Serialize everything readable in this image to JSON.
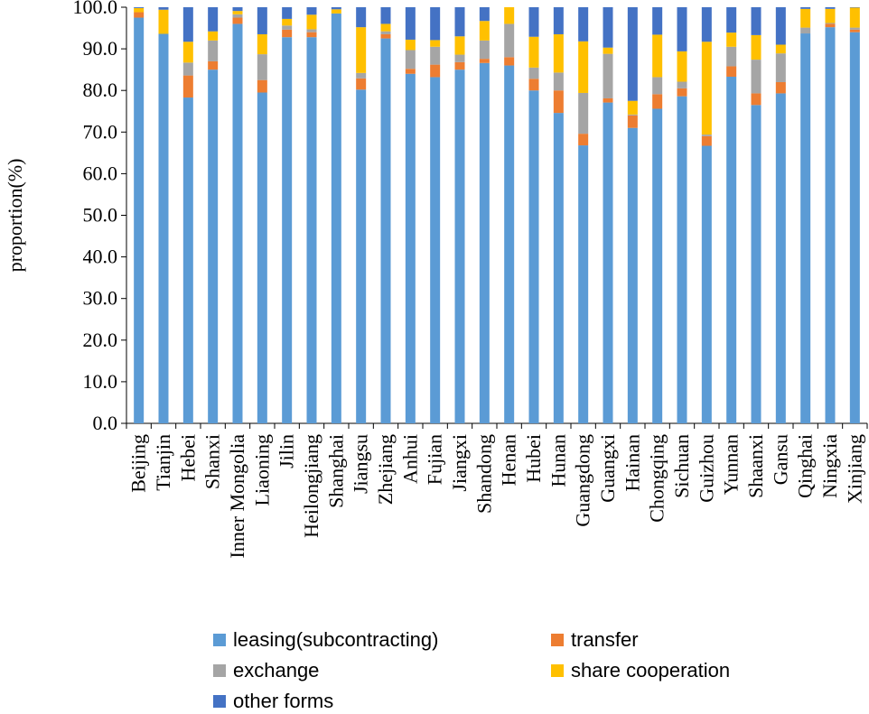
{
  "chart_data": {
    "type": "bar",
    "stacked": true,
    "title": "",
    "xlabel": "",
    "ylabel": "proportion(%)",
    "ylim": [
      0,
      100
    ],
    "yticks": [
      "0.0",
      "10.0",
      "20.0",
      "30.0",
      "40.0",
      "50.0",
      "60.0",
      "70.0",
      "80.0",
      "90.0",
      "100.0"
    ],
    "categories": [
      "Beijing",
      "Tianjin",
      "Hebei",
      "Shanxi",
      "Inner Mongolia",
      "Liaoning",
      "Jilin",
      "Heilongjiang",
      "Shanghai",
      "Jiangsu",
      "Zhejiang",
      "Anhui",
      "Fujian",
      "Jiangxi",
      "Shandong",
      "Henan",
      "Hubei",
      "Hunan",
      "Guangdong",
      "Guangxi",
      "Hainan",
      "Chongqing",
      "Sichuan",
      "Guizhou",
      "Yunnan",
      "Shaanxi",
      "Gansu",
      "Qinghai",
      "Ningxia",
      "Xinjiang"
    ],
    "series": [
      {
        "name": "leasing(subcontracting)",
        "color": "#5B9BD5",
        "values": [
          97.5,
          93.6,
          78.3,
          85.0,
          96.0,
          79.5,
          92.8,
          92.8,
          98.5,
          80.2,
          92.5,
          84.0,
          83.2,
          85.0,
          86.6,
          86.0,
          80.0,
          74.6,
          66.8,
          77.1,
          71.0,
          75.6,
          78.6,
          66.7,
          83.3,
          76.5,
          79.3,
          93.7,
          95.2,
          94.0
        ]
      },
      {
        "name": "transfer",
        "color": "#ED7D31",
        "values": [
          1.3,
          0.0,
          5.3,
          2.0,
          1.5,
          3.0,
          1.8,
          1.2,
          0.0,
          2.7,
          1.0,
          1.2,
          3.0,
          1.8,
          1.0,
          2.0,
          2.8,
          5.4,
          2.8,
          1.0,
          3.0,
          3.5,
          1.9,
          2.3,
          2.5,
          2.8,
          2.7,
          0.0,
          0.8,
          0.6
        ]
      },
      {
        "name": "exchange",
        "color": "#A5A5A5",
        "values": [
          0.0,
          0.0,
          3.1,
          5.0,
          0.8,
          6.2,
          1.0,
          0.7,
          0.0,
          1.3,
          0.7,
          4.5,
          4.3,
          1.8,
          4.4,
          8.0,
          2.7,
          4.3,
          9.8,
          10.7,
          0.2,
          4.1,
          1.6,
          0.4,
          4.7,
          8.1,
          6.9,
          1.4,
          0.2,
          0.5
        ]
      },
      {
        "name": "share cooperation",
        "color": "#FFC000",
        "values": [
          1.0,
          5.8,
          5.0,
          2.2,
          0.8,
          4.8,
          1.6,
          3.5,
          1.0,
          11.0,
          1.8,
          2.5,
          1.6,
          4.4,
          4.7,
          4.0,
          7.4,
          9.2,
          12.4,
          1.5,
          3.3,
          10.2,
          7.3,
          22.3,
          3.4,
          5.9,
          2.1,
          4.5,
          3.4,
          4.8
        ]
      },
      {
        "name": "other forms",
        "color": "#4472C4",
        "values": [
          0.2,
          0.6,
          8.3,
          5.8,
          0.9,
          6.5,
          2.8,
          1.8,
          0.5,
          4.8,
          4.0,
          7.8,
          7.9,
          7.0,
          3.3,
          0.0,
          7.1,
          6.5,
          8.2,
          9.7,
          22.5,
          6.6,
          10.6,
          8.3,
          6.1,
          6.7,
          9.0,
          0.4,
          0.4,
          0.1
        ]
      }
    ],
    "legend": "bottom",
    "grid": false
  }
}
